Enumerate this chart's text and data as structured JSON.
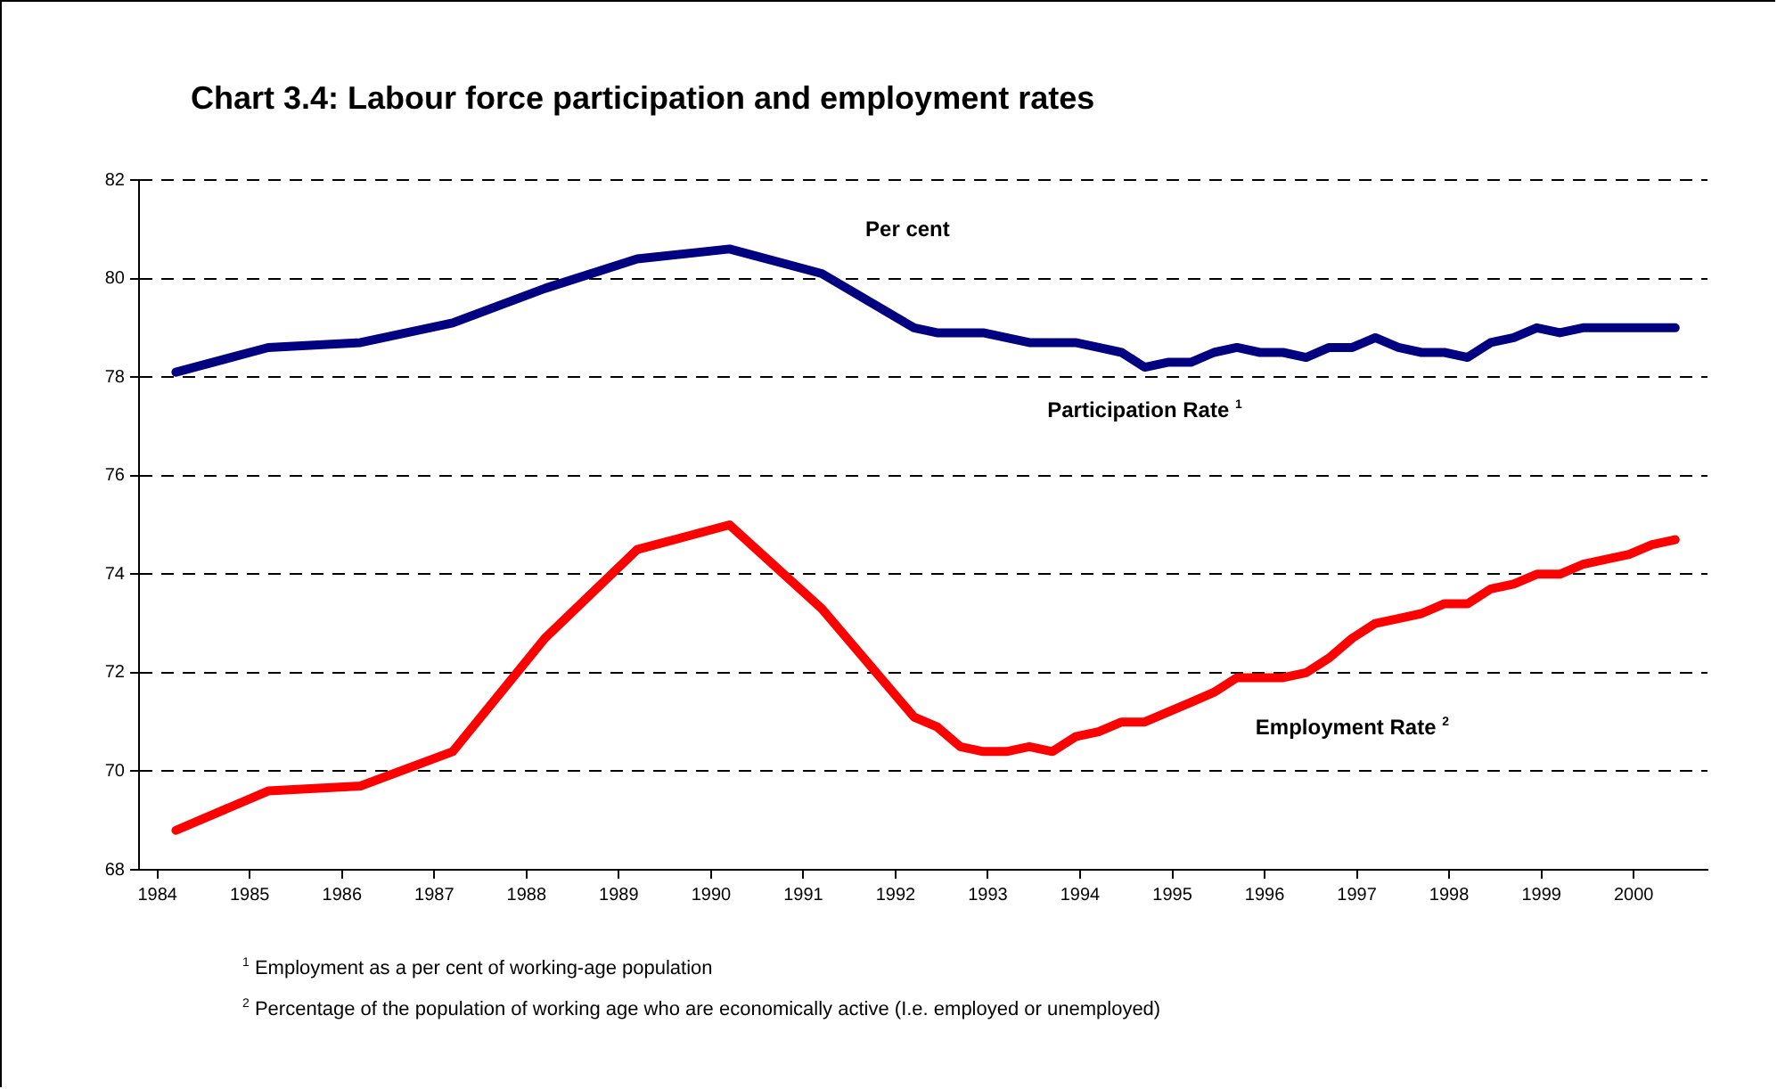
{
  "chart_data": {
    "type": "line",
    "title": "Chart 3.4: Labour force participation and employment rates",
    "ylabel": "Per cent",
    "x": [
      1984.2,
      1985.2,
      1986.2,
      1987.2,
      1988.2,
      1989.2,
      1990.2,
      1991.2,
      1992.2,
      1992.45,
      1992.7,
      1992.95,
      1993.2,
      1993.45,
      1993.7,
      1993.95,
      1994.2,
      1994.45,
      1994.7,
      1994.95,
      1995.2,
      1995.45,
      1995.7,
      1995.95,
      1996.2,
      1996.45,
      1996.7,
      1996.95,
      1997.2,
      1997.45,
      1997.7,
      1997.95,
      1998.2,
      1998.45,
      1998.7,
      1998.95,
      1999.2,
      1999.45,
      1999.7,
      1999.95,
      2000.2,
      2000.45
    ],
    "series": [
      {
        "name": "Participation Rate $^{1}$",
        "color": "#000080",
        "values": [
          78.1,
          78.6,
          78.7,
          79.1,
          79.8,
          80.4,
          80.6,
          80.1,
          79.0,
          78.9,
          78.9,
          78.9,
          78.8,
          78.7,
          78.7,
          78.7,
          78.6,
          78.5,
          78.2,
          78.3,
          78.3,
          78.5,
          78.6,
          78.5,
          78.5,
          78.4,
          78.6,
          78.6,
          78.8,
          78.6,
          78.5,
          78.5,
          78.4,
          78.7,
          78.8,
          79.0,
          78.9,
          79.0,
          79.0,
          79.0,
          79.0,
          79.0
        ]
      },
      {
        "name": "Employment Rate $^{2}$",
        "color": "#ff0000",
        "values": [
          68.8,
          69.6,
          69.7,
          70.4,
          72.7,
          74.5,
          75.0,
          73.3,
          71.1,
          70.9,
          70.5,
          70.4,
          70.4,
          70.5,
          70.4,
          70.7,
          70.8,
          71.0,
          71.0,
          71.2,
          71.4,
          71.6,
          71.9,
          71.9,
          71.9,
          72.0,
          72.3,
          72.7,
          73.0,
          73.1,
          73.2,
          73.4,
          73.4,
          73.7,
          73.8,
          74.0,
          74.0,
          74.2,
          74.3,
          74.4,
          74.6,
          74.7
        ]
      }
    ],
    "xlim": [
      1983.8,
      2000.8
    ],
    "xticks": [
      1984,
      1985,
      1986,
      1987,
      1988,
      1989,
      1990,
      1991,
      1992,
      1993,
      1994,
      1995,
      1996,
      1997,
      1998,
      1999,
      2000
    ],
    "ylim": [
      68,
      82
    ],
    "yticks": [
      68,
      70,
      72,
      74,
      76,
      78,
      80,
      82
    ],
    "grid": "y",
    "marker": "none",
    "line_style": "solid",
    "annotations": [
      "$^{1}$ Employment as a per cent of working-age population",
      "$^{2}$ Percentage of the population of working age who are economically active (I.e. employed or unemployed)"
    ]
  }
}
